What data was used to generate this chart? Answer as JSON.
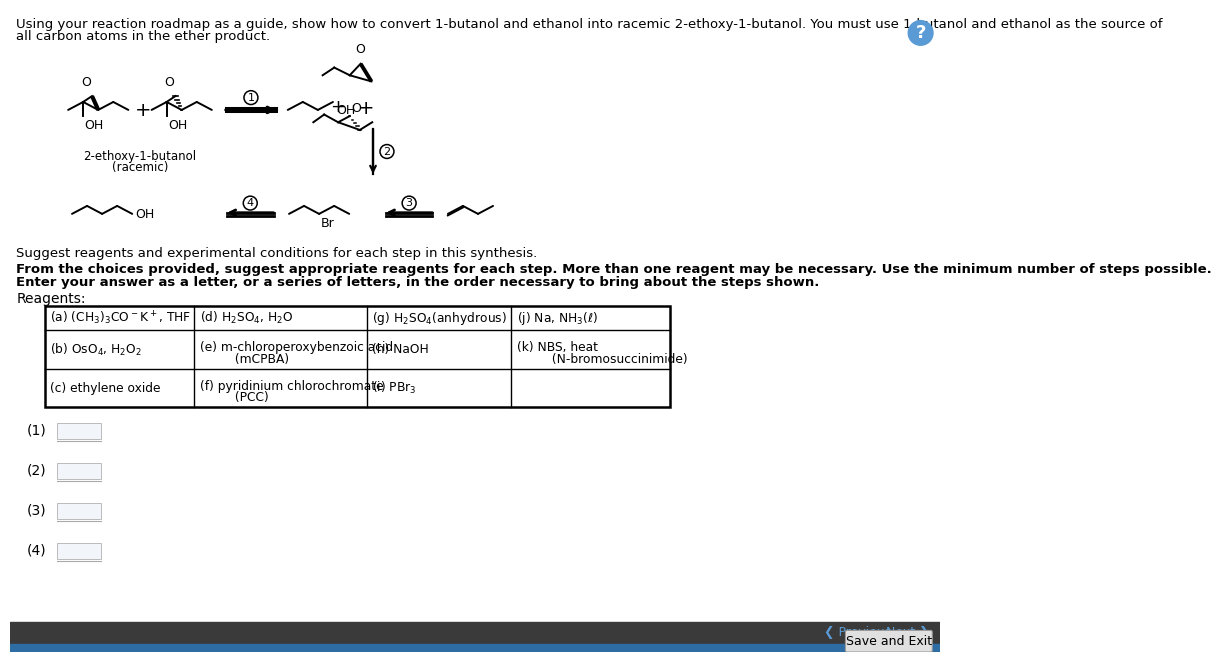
{
  "bg_color": "#ffffff",
  "header_text_line1": "Using your reaction roadmap as a guide, show how to convert 1-butanol and ethanol into racemic 2-ethoxy-1-butanol. You must use 1-butanol and ethanol as the source of",
  "header_text_line2": "all carbon atoms in the ether product.",
  "suggest_text": "Suggest reagents and experimental conditions for each step in this synthesis.",
  "bold_line1": "From the choices provided, suggest appropriate reagents for each step. More than one reagent may be necessary. Use the minimum number of steps possible.",
  "bold_line2": "Enter your answer as a letter, or a series of letters, in the order necessary to bring about the steps shown.",
  "reagents_label": "Reagents:",
  "answer_labels": [
    "(1)",
    "(2)",
    "(3)",
    "(4)"
  ],
  "nav_prev": "Previous",
  "nav_next": "Next",
  "save_exit": "Save and Exit",
  "question_circle_color": "#5b9bd5",
  "bottom_dark_color": "#3a3a3a",
  "bottom_blue_color": "#2e6da4"
}
